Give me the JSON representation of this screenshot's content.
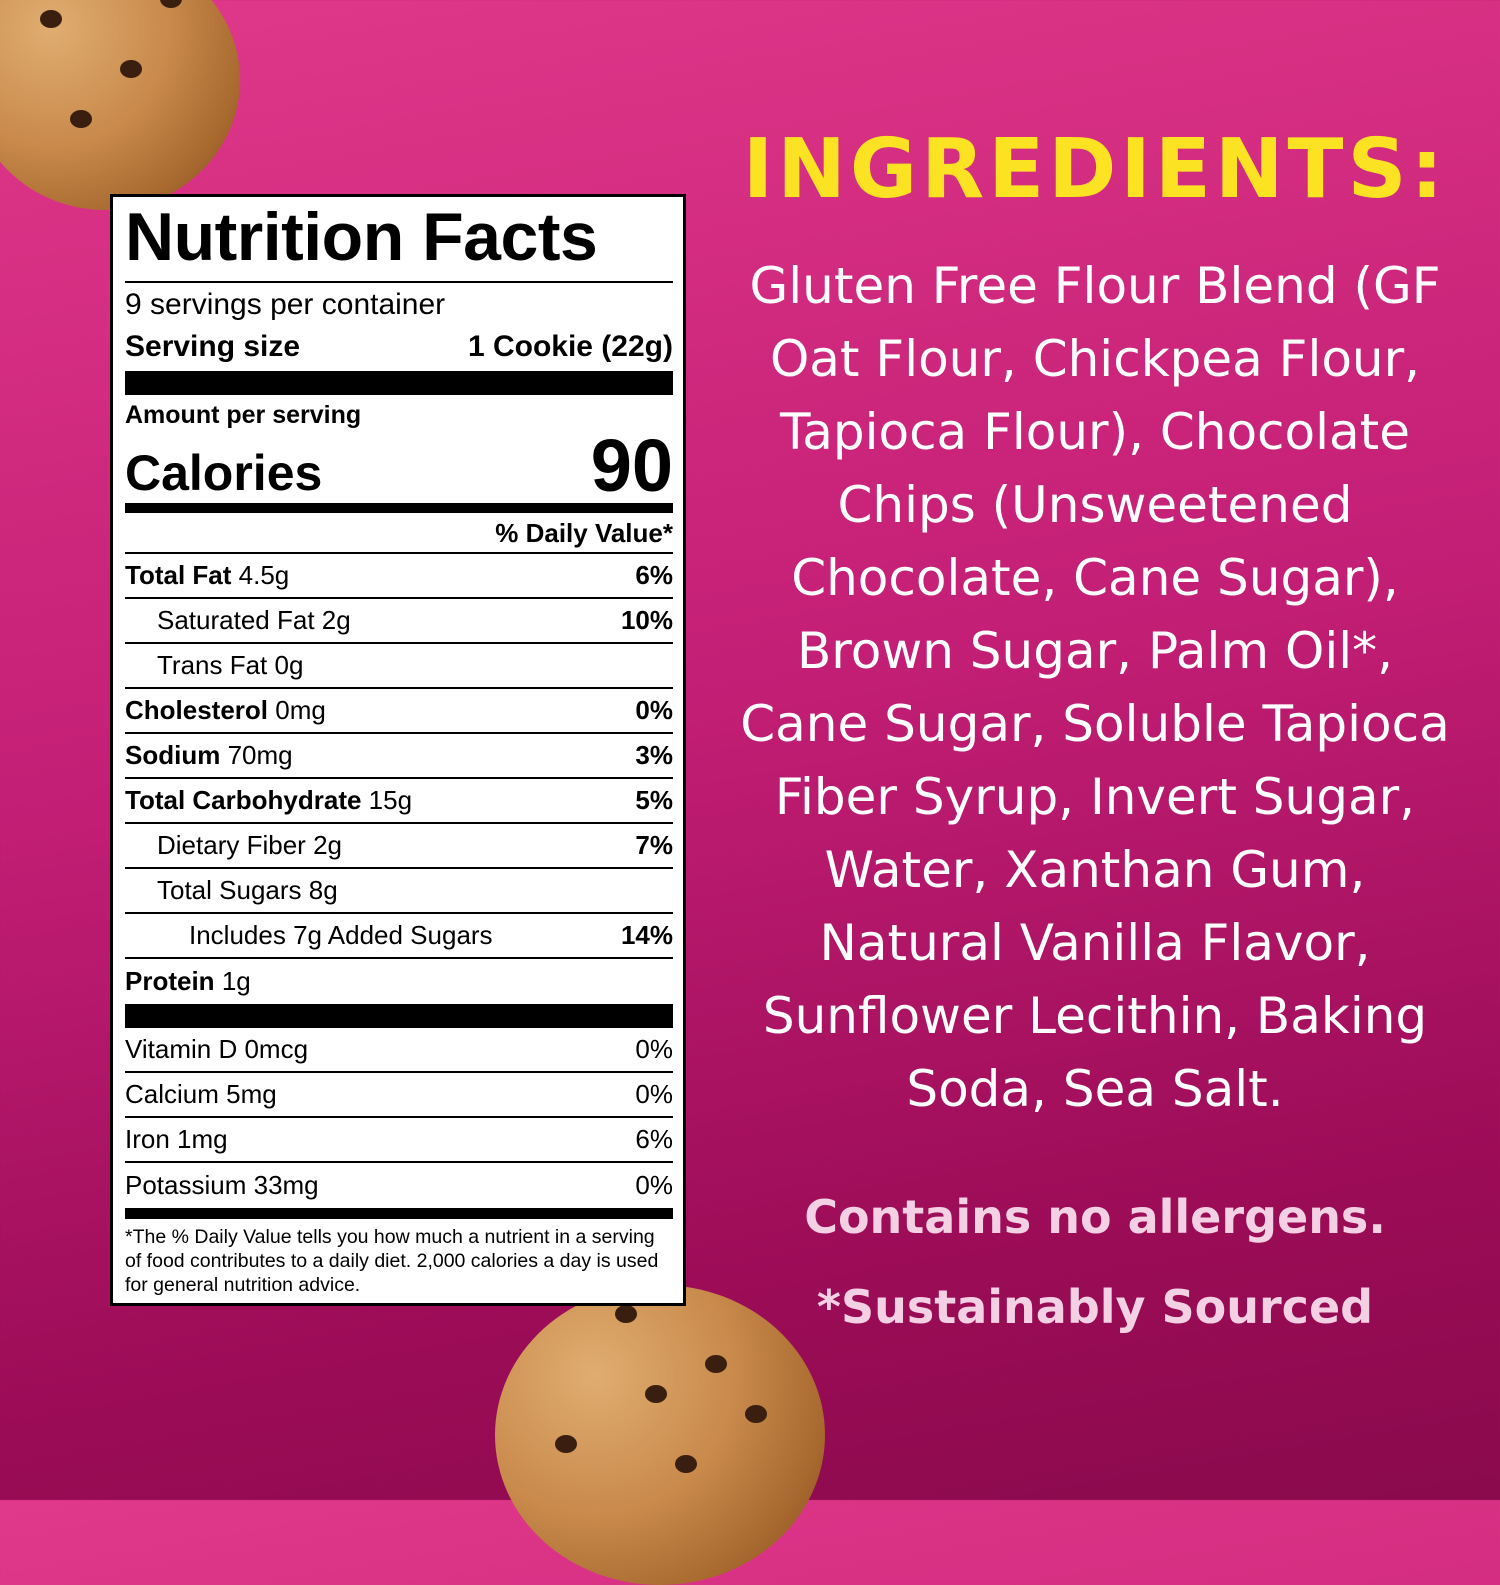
{
  "colors": {
    "background_top": "#e0388a",
    "background_bottom": "#8a0a4d",
    "heading": "#fbe324",
    "text": "#ffffff",
    "note": "#f3d0e4"
  },
  "nutrition": {
    "title": "Nutrition Facts",
    "servings": "9 servings per container",
    "serving_size_label": "Serving size",
    "serving_size_value": "1 Cookie (22g)",
    "amount_per_serving": "Amount per serving",
    "calories_label": "Calories",
    "calories_value": "90",
    "dv_header": "% Daily Value*",
    "nutrients": [
      {
        "name": "Total Fat",
        "amount": "4.5g",
        "dv": "6%"
      },
      {
        "name": "Saturated Fat",
        "amount": "2g",
        "dv": "10%"
      },
      {
        "name": "Trans Fat",
        "amount": "0g",
        "dv": ""
      },
      {
        "name": "Cholesterol",
        "amount": "0mg",
        "dv": "0%"
      },
      {
        "name": "Sodium",
        "amount": "70mg",
        "dv": "3%"
      },
      {
        "name": "Total Carbohydrate",
        "amount": "15g",
        "dv": "5%"
      },
      {
        "name": "Dietary Fiber",
        "amount": "2g",
        "dv": "7%"
      },
      {
        "name": "Total Sugars",
        "amount": "8g",
        "dv": ""
      },
      {
        "name": "Includes 7g Added Sugars",
        "amount": "",
        "dv": "14%"
      },
      {
        "name": "Protein",
        "amount": "1g",
        "dv": ""
      }
    ],
    "vitamins": [
      {
        "name": "Vitamin D 0mcg",
        "dv": "0%"
      },
      {
        "name": "Calcium 5mg",
        "dv": "0%"
      },
      {
        "name": "Iron 1mg",
        "dv": "6%"
      },
      {
        "name": "Potassium 33mg",
        "dv": "0%"
      }
    ],
    "footnote": "*The % Daily Value tells you how much a nutrient in a serving of food contributes to a daily diet. 2,000 calories a day is used for general nutrition advice."
  },
  "ingredients": {
    "title": "INGREDIENTS:",
    "lines": [
      "Gluten Free Flour Blend (GF",
      "Oat Flour, Chickpea Flour,",
      "Tapioca Flour), Chocolate",
      "Chips (Unsweetened",
      "Chocolate, Cane Sugar),",
      "Brown Sugar, Palm Oil*,",
      "Cane Sugar, Soluble Tapioca",
      "Fiber Syrup, Invert Sugar,",
      "Water, Xanthan Gum,",
      "Natural Vanilla Flavor,",
      "Sunflower Lecithin, Baking",
      "Soda, Sea Salt."
    ],
    "allergens": "Contains no allergens.",
    "sourcing": "*Sustainably Sourced"
  }
}
